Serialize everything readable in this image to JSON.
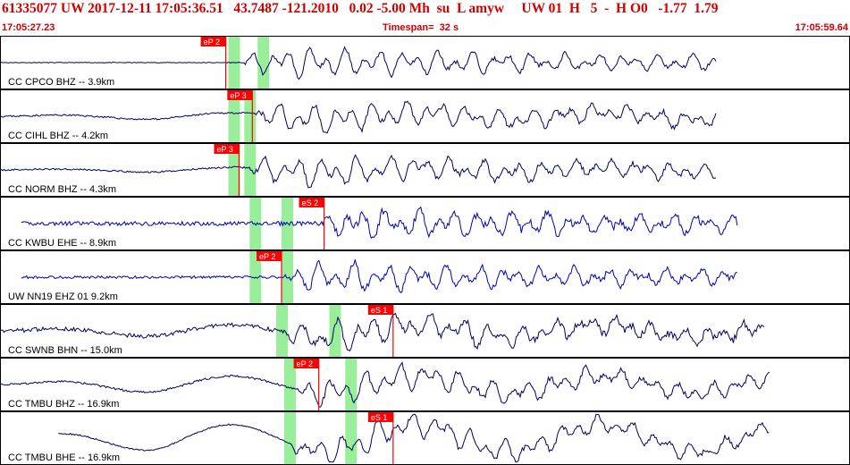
{
  "header": {
    "title": "61335077 UW 2017-12-11 17:05:36.51   43.7487 -121.2010   0.02 -5.00 Mh  su  L amyw     UW 01  H   5  -  H O0   -1.77  1.79",
    "start_time": "17:05:27.23",
    "timespan": "Timespan=  32 s",
    "end_time": "17:05:59.64"
  },
  "colors": {
    "header_text": "#d00000",
    "pick": "#ff0000",
    "window": "#99ee99",
    "trace_dark": "#000060",
    "trace_blue": "#0000b0"
  },
  "traces": [
    {
      "label": "CC CPCO BHZ -- 3.9km",
      "pick": "eP 2",
      "pick_t": 8.5,
      "windows": [
        8.8,
        9.9
      ],
      "color": "dark",
      "start_t": 0,
      "end_t": 27.0,
      "noise": 0.02,
      "arrival_t": 9.2,
      "surf": 0.0,
      "seed": 11
    },
    {
      "label": "CC CIHL BHZ -- 4.2km",
      "pick": "eP 3",
      "pick_t": 9.5,
      "windows": [
        8.8,
        9.4
      ],
      "color": "dark",
      "start_t": 0,
      "end_t": 27.0,
      "noise": 0.05,
      "arrival_t": 9.6,
      "surf": 0.2,
      "seed": 23
    },
    {
      "label": "CC NORM BHZ -- 4.3km",
      "pick": "eP 3",
      "pick_t": 9.0,
      "windows": [
        8.8,
        9.4
      ],
      "color": "dark",
      "start_t": 0,
      "end_t": 27.0,
      "noise": 0.05,
      "arrival_t": 9.4,
      "surf": 0.15,
      "seed": 37
    },
    {
      "label": "CC KWBU EHE -- 8.9km",
      "pick": "eS 2",
      "pick_t": 12.2,
      "windows": [
        9.6,
        10.8
      ],
      "color": "blue",
      "start_t": 0.8,
      "end_t": 27.8,
      "noise": 0.12,
      "arrival_t": 12.2,
      "surf": 0.0,
      "seed": 41
    },
    {
      "label": "UW NN19 EHZ 01 9.2km",
      "pick": "eP 2",
      "pick_t": 10.6,
      "windows": [
        9.6,
        10.8
      ],
      "color": "blue",
      "start_t": 0.8,
      "end_t": 27.8,
      "noise": 0.08,
      "arrival_t": 10.7,
      "surf": 0.0,
      "seed": 53
    },
    {
      "label": "CC SWNB BHN -- 15.0km",
      "pick": "eS 1",
      "pick_t": 14.8,
      "windows": [
        10.6,
        12.6
      ],
      "color": "dark",
      "start_t": 0,
      "end_t": 28.8,
      "noise": 0.12,
      "arrival_t": 10.8,
      "surf": 0.35,
      "seed": 67
    },
    {
      "label": "CC TMBU BHZ -- 16.9km",
      "pick": "eP 2",
      "pick_t": 12.0,
      "windows": [
        10.9,
        13.2
      ],
      "color": "dark",
      "start_t": 0,
      "end_t": 29.0,
      "noise": 0.06,
      "arrival_t": 11.2,
      "surf": 0.5,
      "seed": 71
    },
    {
      "label": "CC TMBU BHE -- 16.9km",
      "pick": "eS 1",
      "pick_t": 14.8,
      "windows": [
        10.9,
        13.2
      ],
      "color": "dark",
      "start_t": 2.2,
      "end_t": 29.0,
      "noise": 0.04,
      "arrival_t": 11.0,
      "surf": 0.8,
      "seed": 89
    }
  ]
}
